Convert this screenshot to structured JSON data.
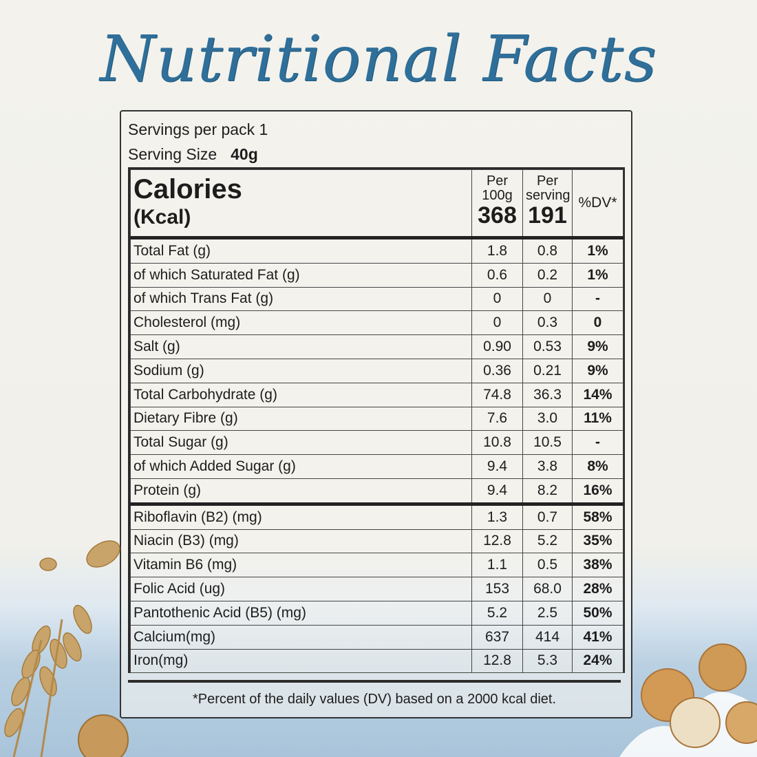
{
  "title": "Nutritional Facts",
  "servings_per_pack": "Servings per pack 1",
  "serving_size_label": "Serving Size",
  "serving_size_value": "40g",
  "header": {
    "calories": "Calories",
    "kcal": "(Kcal)",
    "per100_label": "Per 100g",
    "per100_value": "368",
    "perserving_label": "Per serving",
    "perserving_value": "191",
    "dv_label": "%DV*"
  },
  "rows": [
    {
      "name": "Total Fat (g)",
      "p100": "1.8",
      "ps": "0.8",
      "dv": "1%"
    },
    {
      "name": " of which Saturated Fat (g)",
      "p100": "0.6",
      "ps": "0.2",
      "dv": "1%"
    },
    {
      "name": " of which Trans Fat (g)",
      "p100": "0",
      "ps": "0",
      "dv": "-"
    },
    {
      "name": "Cholesterol (mg)",
      "p100": "0",
      "ps": "0.3",
      "dv": "0"
    },
    {
      "name": "Salt (g)",
      "p100": "0.90",
      "ps": "0.53",
      "dv": "9%"
    },
    {
      "name": "Sodium (g)",
      "p100": "0.36",
      "ps": "0.21",
      "dv": "9%"
    },
    {
      "name": "Total Carbohydrate (g)",
      "p100": "74.8",
      "ps": "36.3",
      "dv": "14%"
    },
    {
      "name": "Dietary Fibre (g)",
      "p100": "7.6",
      "ps": "3.0",
      "dv": "11%"
    },
    {
      "name": "Total Sugar (g)",
      "p100": "10.8",
      "ps": "10.5",
      "dv": "-"
    },
    {
      "name": " of which Added Sugar (g)",
      "p100": "9.4",
      "ps": "3.8",
      "dv": "8%"
    },
    {
      "name": "Protein (g)",
      "p100": "9.4",
      "ps": "8.2",
      "dv": "16%"
    },
    {
      "name": "Riboflavin (B2) (mg)",
      "p100": "1.3",
      "ps": "0.7",
      "dv": "58%"
    },
    {
      "name": "Niacin (B3) (mg)",
      "p100": "12.8",
      "ps": "5.2",
      "dv": "35%"
    },
    {
      "name": "Vitamin B6 (mg)",
      "p100": "1.1",
      "ps": "0.5",
      "dv": "38%"
    },
    {
      "name": "Folic Acid (ug)",
      "p100": "153",
      "ps": "68.0",
      "dv": "28%"
    },
    {
      "name": "Pantothenic Acid (B5) (mg)",
      "p100": "5.2",
      "ps": "2.5",
      "dv": "50%"
    },
    {
      "name": "Calcium(mg)",
      "p100": "637",
      "ps": "414",
      "dv": "41%"
    },
    {
      "name": "Iron(mg)",
      "p100": "12.8",
      "ps": "5.3",
      "dv": "24%"
    }
  ],
  "footnote": "*Percent of the daily values (DV) based on a 2000 kcal diet.",
  "colors": {
    "title": "#2f6f9a",
    "background": "#f2f1eb",
    "sky": "#a9c4da"
  }
}
